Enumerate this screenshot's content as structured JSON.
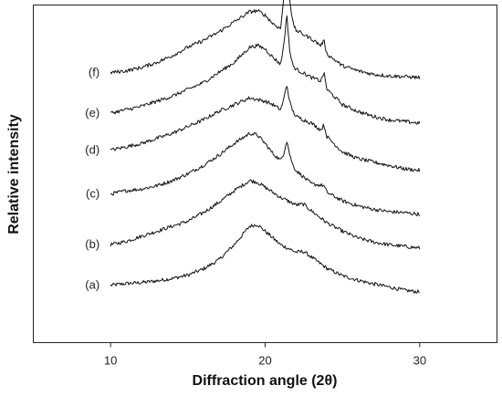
{
  "chart_data": {
    "type": "line",
    "title": "",
    "xlabel": "Diffraction angle (2θ)",
    "ylabel": "Relative intensity",
    "xlim": [
      5,
      35
    ],
    "xticks": [
      10,
      20,
      30
    ],
    "ylim": [
      0,
      100
    ],
    "yticks": [],
    "grid": false,
    "legend": "none",
    "colors": {
      "line": "#111111",
      "frame": "#222222"
    },
    "series": [
      {
        "name": "(a)",
        "x": [
          10,
          11,
          12,
          13,
          14,
          15,
          16,
          17,
          18,
          19,
          19.5,
          20,
          21,
          22,
          22.5,
          23,
          24,
          25,
          26,
          27,
          28,
          29,
          30
        ],
        "y": [
          17,
          17.5,
          17.8,
          18.3,
          19,
          20,
          21.8,
          24.5,
          29,
          34.5,
          35,
          33,
          29,
          26.8,
          27,
          25.3,
          22,
          19.8,
          18.5,
          17.4,
          16.5,
          15.5,
          15
        ]
      },
      {
        "name": "(b)",
        "x": [
          10,
          11,
          12,
          13,
          14,
          15,
          16,
          17,
          18,
          19,
          19.5,
          20,
          21,
          22,
          22.5,
          23,
          24,
          25,
          26,
          27,
          28,
          29,
          30
        ],
        "y": [
          29,
          30,
          31.5,
          33,
          34.5,
          36,
          38.5,
          41.5,
          45,
          48,
          47.5,
          46,
          43,
          40.8,
          41,
          39,
          35.5,
          33,
          31,
          29.8,
          29,
          28.5,
          28
        ]
      },
      {
        "name": "(c)",
        "x": [
          10,
          11,
          12,
          13,
          14,
          15,
          16,
          17,
          18,
          19,
          19.5,
          20,
          20.5,
          21,
          21.2,
          21.4,
          21.6,
          21.8,
          22,
          23,
          23.8,
          24,
          25,
          26,
          27,
          28,
          29,
          30
        ],
        "y": [
          44,
          45,
          45.5,
          46.5,
          48,
          50,
          52.5,
          55.5,
          59,
          62,
          61.5,
          59,
          56,
          54,
          56,
          60,
          55.5,
          52.5,
          51,
          47,
          46.5,
          44.5,
          42,
          40.5,
          39.5,
          38.8,
          38.5,
          38
        ]
      },
      {
        "name": "(d)",
        "x": [
          10,
          11,
          12,
          13,
          14,
          15,
          16,
          17,
          18,
          19,
          19.5,
          20,
          20.5,
          21,
          21.2,
          21.4,
          21.6,
          21.8,
          22,
          23,
          23.6,
          23.8,
          24,
          25,
          26,
          27,
          28,
          29,
          30
        ],
        "y": [
          57,
          58,
          59,
          60.5,
          62,
          64,
          66,
          68.5,
          70.5,
          72.5,
          72,
          71.5,
          70.5,
          69,
          72,
          76.5,
          71,
          68.5,
          67,
          65,
          63,
          64.5,
          61,
          56.5,
          54.5,
          53.5,
          52.5,
          51.5,
          51
        ]
      },
      {
        "name": "(e)",
        "x": [
          10,
          11,
          12,
          13,
          14,
          15,
          16,
          17,
          18,
          19,
          19.5,
          20,
          20.5,
          21,
          21.2,
          21.4,
          21.6,
          21.8,
          22,
          23,
          23.6,
          23.8,
          24,
          25,
          26,
          27,
          28,
          29,
          30
        ],
        "y": [
          68,
          69,
          70,
          71.5,
          73,
          75,
          77,
          80,
          83,
          87.5,
          88,
          87,
          84.5,
          82.5,
          88,
          97,
          86,
          82,
          81,
          78.5,
          77.5,
          80,
          75,
          70.5,
          68.5,
          67,
          66,
          65.5,
          65
        ]
      },
      {
        "name": "(f)",
        "x": [
          10,
          11,
          12,
          13,
          14,
          15,
          16,
          17,
          18,
          19,
          19.5,
          20,
          20.5,
          21,
          21.2,
          21.4,
          21.6,
          21.8,
          22,
          23,
          23.6,
          23.8,
          24,
          25,
          26,
          27,
          28,
          29,
          30
        ],
        "y": [
          80,
          80.5,
          81.5,
          83,
          85,
          87.5,
          89.5,
          92,
          95,
          98,
          98.3,
          97,
          94.5,
          93,
          102,
          119,
          101,
          94.5,
          92.5,
          90,
          88,
          89.5,
          85.5,
          82,
          80.5,
          79.5,
          79,
          78.8,
          78.5
        ]
      }
    ]
  }
}
